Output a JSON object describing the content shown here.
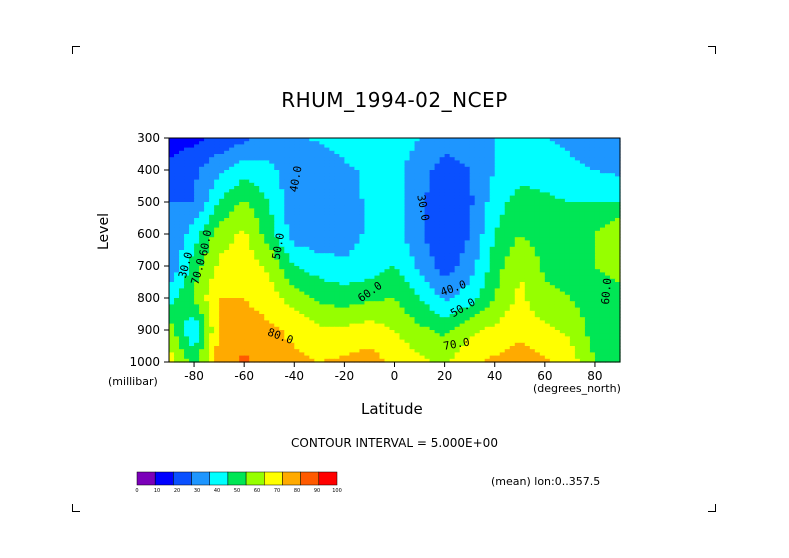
{
  "chart_data": {
    "type": "heatmap",
    "title": "RHUM_1994-02_NCEP",
    "xlabel": "Latitude",
    "x_units": "(degrees_north)",
    "ylabel": "Level",
    "y_units": "(millibar)",
    "xlim": [
      -90,
      90
    ],
    "ylim": [
      1000,
      300
    ],
    "x_ticks": [
      "-80",
      "-60",
      "-40",
      "-20",
      "0",
      "20",
      "40",
      "60",
      "80"
    ],
    "y_ticks": [
      "300",
      "400",
      "500",
      "600",
      "700",
      "800",
      "900",
      "1000"
    ],
    "contour_interval_label": "CONTOUR INTERVAL = 5.000E+00",
    "subset_label": "(mean) lon:0..357.5",
    "colorbar": {
      "ticks": [
        "0",
        "10",
        "20",
        "30",
        "40",
        "50",
        "60",
        "70",
        "80",
        "90",
        "100"
      ],
      "colors": [
        "#7b00b9",
        "#0000ff",
        "#0a50ff",
        "#1e96ff",
        "#00ffff",
        "#00e655",
        "#96ff00",
        "#ffff00",
        "#ffaa00",
        "#ff5a00",
        "#ff0000"
      ]
    },
    "contour_labels": [
      {
        "text": "40.0",
        "lat": -38,
        "level": 430,
        "angle": -80
      },
      {
        "text": "30.0",
        "lat": 10,
        "level": 520,
        "angle": 80
      },
      {
        "text": "50.0",
        "lat": -45,
        "level": 640,
        "angle": -80
      },
      {
        "text": "60.0",
        "lat": -74,
        "level": 630,
        "angle": -80
      },
      {
        "text": "70.0",
        "lat": -77,
        "level": 720,
        "angle": -75
      },
      {
        "text": "30.0",
        "lat": -82,
        "level": 700,
        "angle": -75
      },
      {
        "text": "60.0",
        "lat": -9,
        "level": 790,
        "angle": -35
      },
      {
        "text": "40.0",
        "lat": 24,
        "level": 780,
        "angle": -20
      },
      {
        "text": "50.0",
        "lat": 28,
        "level": 840,
        "angle": -30
      },
      {
        "text": "80.0",
        "lat": -46,
        "level": 930,
        "angle": 20
      },
      {
        "text": "70.0",
        "lat": 25,
        "level": 955,
        "angle": -10
      },
      {
        "text": "60.0",
        "lat": 86,
        "level": 780,
        "angle": -85
      }
    ],
    "values_lat": [
      -90,
      -80,
      -70,
      -60,
      -50,
      -40,
      -30,
      -20,
      -10,
      0,
      10,
      20,
      30,
      40,
      50,
      60,
      70,
      80,
      90
    ],
    "values_level": [
      300,
      400,
      500,
      600,
      700,
      800,
      900,
      1000
    ],
    "values": [
      [
        12,
        18,
        22,
        28,
        35,
        38,
        42,
        45,
        48,
        45,
        40,
        35,
        38,
        40,
        42,
        40,
        38,
        35,
        30
      ],
      [
        25,
        28,
        38,
        45,
        42,
        35,
        30,
        38,
        42,
        43,
        35,
        25,
        30,
        40,
        45,
        45,
        42,
        40,
        38
      ],
      [
        30,
        30,
        50,
        62,
        50,
        32,
        30,
        35,
        42,
        44,
        33,
        20,
        28,
        45,
        55,
        52,
        50,
        50,
        50
      ],
      [
        30,
        45,
        65,
        72,
        55,
        35,
        33,
        35,
        42,
        45,
        32,
        20,
        30,
        50,
        60,
        55,
        55,
        60,
        70
      ],
      [
        30,
        55,
        72,
        76,
        68,
        50,
        45,
        42,
        45,
        50,
        38,
        25,
        35,
        55,
        70,
        58,
        58,
        60,
        65
      ],
      [
        45,
        62,
        80,
        80,
        75,
        65,
        58,
        55,
        58,
        60,
        50,
        38,
        45,
        60,
        72,
        62,
        60,
        55,
        55
      ],
      [
        65,
        40,
        82,
        85,
        82,
        78,
        72,
        72,
        75,
        70,
        62,
        58,
        68,
        72,
        78,
        72,
        68,
        55,
        50
      ],
      [
        75,
        55,
        85,
        92,
        82,
        82,
        80,
        82,
        84,
        78,
        72,
        68,
        78,
        82,
        85,
        82,
        75,
        60,
        55
      ]
    ]
  }
}
